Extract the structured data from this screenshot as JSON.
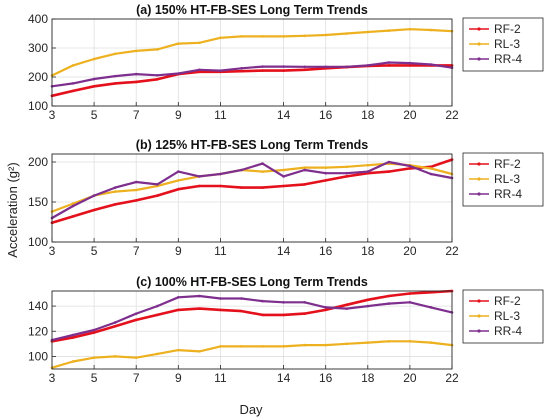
{
  "figure": {
    "ylabel": "Acceleration (g²)",
    "xlabel": "Day"
  },
  "colors": {
    "RF-2": "#e4101b",
    "RL-3": "#edb120",
    "RR-4": "#7e2f8e"
  },
  "chart_data": [
    {
      "type": "line",
      "title": "(a) 150% HT-FB-SES Long Term Trends",
      "xlabel": "",
      "ylabel": "",
      "xlim": [
        3,
        22
      ],
      "ylim": [
        100,
        400
      ],
      "xticks": [
        3,
        5,
        7,
        9,
        11,
        14,
        16,
        18,
        20,
        22
      ],
      "yticks": [
        100,
        200,
        300,
        400
      ],
      "grid": true,
      "legend_position": "right",
      "series": [
        {
          "name": "RF-2",
          "x": [
            3,
            4,
            5,
            6,
            7,
            8,
            9,
            10,
            11,
            12,
            13,
            14,
            15,
            16,
            17,
            18,
            19,
            20,
            21,
            22
          ],
          "values": [
            135,
            152,
            168,
            178,
            183,
            192,
            210,
            218,
            218,
            220,
            222,
            222,
            225,
            230,
            234,
            238,
            240,
            240,
            240,
            240
          ]
        },
        {
          "name": "RL-3",
          "x": [
            3,
            4,
            5,
            6,
            7,
            8,
            9,
            10,
            11,
            12,
            13,
            14,
            15,
            16,
            17,
            18,
            19,
            20,
            21,
            22
          ],
          "values": [
            205,
            240,
            262,
            280,
            290,
            295,
            315,
            318,
            335,
            340,
            340,
            340,
            342,
            345,
            350,
            355,
            360,
            365,
            362,
            358
          ]
        },
        {
          "name": "RR-4",
          "x": [
            3,
            4,
            5,
            6,
            7,
            8,
            9,
            10,
            11,
            12,
            13,
            14,
            15,
            16,
            17,
            18,
            19,
            20,
            21,
            22
          ],
          "values": [
            168,
            178,
            193,
            203,
            210,
            206,
            212,
            225,
            222,
            230,
            236,
            236,
            235,
            235,
            235,
            240,
            250,
            248,
            243,
            232
          ]
        }
      ]
    },
    {
      "type": "line",
      "title": "(b) 125% HT-FB-SES Long Term Trends",
      "xlabel": "",
      "ylabel": "",
      "xlim": [
        3,
        22
      ],
      "ylim": [
        100,
        210
      ],
      "xticks": [
        3,
        5,
        7,
        9,
        11,
        14,
        16,
        18,
        20,
        22
      ],
      "yticks": [
        100,
        150,
        200
      ],
      "grid": true,
      "legend_position": "right",
      "series": [
        {
          "name": "RF-2",
          "x": [
            3,
            4,
            5,
            6,
            7,
            8,
            9,
            10,
            11,
            12,
            13,
            14,
            15,
            16,
            17,
            18,
            19,
            20,
            21,
            22
          ],
          "values": [
            124,
            132,
            140,
            147,
            152,
            158,
            166,
            170,
            170,
            168,
            168,
            170,
            172,
            177,
            182,
            186,
            188,
            192,
            194,
            203
          ]
        },
        {
          "name": "RL-3",
          "x": [
            3,
            4,
            5,
            6,
            7,
            8,
            9,
            10,
            11,
            12,
            13,
            14,
            15,
            16,
            17,
            18,
            19,
            20,
            21,
            22
          ],
          "values": [
            138,
            148,
            158,
            163,
            165,
            170,
            177,
            182,
            185,
            190,
            188,
            190,
            193,
            193,
            194,
            196,
            198,
            196,
            192,
            185
          ]
        },
        {
          "name": "RR-4",
          "x": [
            3,
            4,
            5,
            6,
            7,
            8,
            9,
            10,
            11,
            12,
            13,
            14,
            15,
            16,
            17,
            18,
            19,
            20,
            21,
            22
          ],
          "values": [
            130,
            145,
            158,
            168,
            175,
            172,
            188,
            182,
            185,
            190,
            198,
            182,
            190,
            186,
            186,
            188,
            200,
            195,
            185,
            180
          ]
        }
      ]
    },
    {
      "type": "line",
      "title": "(c) 100% HT-FB-SES Long Term Trends",
      "xlabel": "Day",
      "ylabel": "",
      "xlim": [
        3,
        22
      ],
      "ylim": [
        90,
        152
      ],
      "xticks": [
        3,
        5,
        7,
        9,
        11,
        14,
        16,
        18,
        20,
        22
      ],
      "yticks": [
        100,
        120,
        140
      ],
      "grid": true,
      "legend_position": "right",
      "series": [
        {
          "name": "RF-2",
          "x": [
            3,
            4,
            5,
            6,
            7,
            8,
            9,
            10,
            11,
            12,
            13,
            14,
            15,
            16,
            17,
            18,
            19,
            20,
            21,
            22
          ],
          "values": [
            112,
            115,
            119,
            124,
            129,
            133,
            137,
            138,
            137,
            136,
            133,
            133,
            134,
            137,
            141,
            145,
            148,
            150,
            151,
            152
          ]
        },
        {
          "name": "RL-3",
          "x": [
            3,
            4,
            5,
            6,
            7,
            8,
            9,
            10,
            11,
            12,
            13,
            14,
            15,
            16,
            17,
            18,
            19,
            20,
            21,
            22
          ],
          "values": [
            91,
            96,
            99,
            100,
            99,
            102,
            105,
            104,
            108,
            108,
            108,
            108,
            109,
            109,
            110,
            111,
            112,
            112,
            111,
            109
          ]
        },
        {
          "name": "RR-4",
          "x": [
            3,
            4,
            5,
            6,
            7,
            8,
            9,
            10,
            11,
            12,
            13,
            14,
            15,
            16,
            17,
            18,
            19,
            20,
            21,
            22
          ],
          "values": [
            113,
            117,
            121,
            127,
            134,
            140,
            147,
            148,
            146,
            146,
            144,
            143,
            143,
            139,
            138,
            140,
            142,
            143,
            139,
            135
          ]
        }
      ]
    }
  ]
}
